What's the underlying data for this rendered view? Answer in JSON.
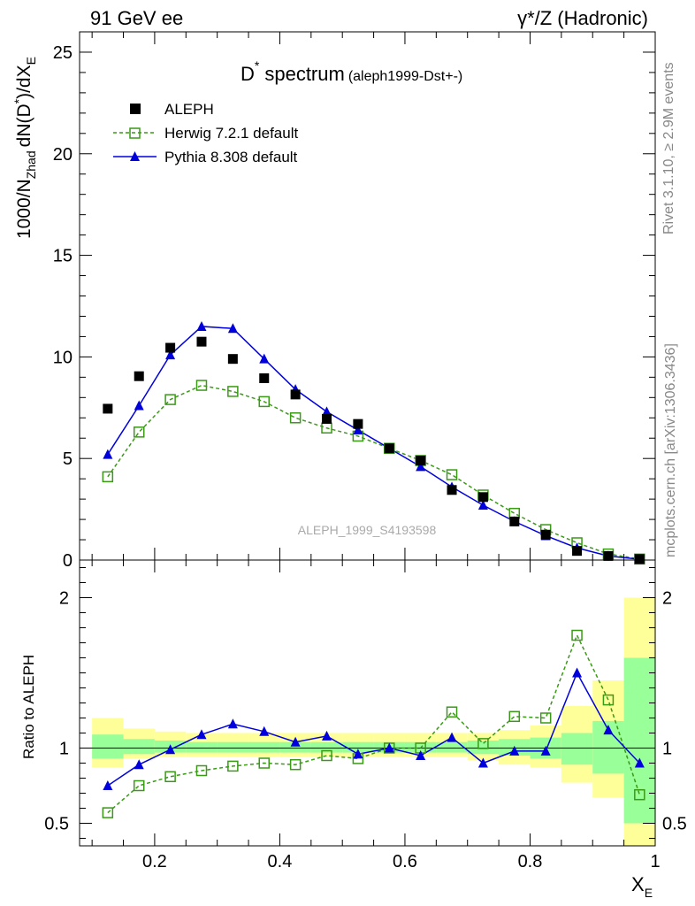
{
  "header": {
    "left": "91 GeV ee",
    "right": "γ*/Z (Hadronic)"
  },
  "side_labels": {
    "rivet": "Rivet 3.1.10, ≥ 2.9M events",
    "mcplots": "mcplots.cern.ch [arXiv:1306.3436]"
  },
  "title": {
    "main": "D",
    "sup": "*",
    "rest": "spectrum",
    "sub": "(aleph1999-Dst+-)"
  },
  "watermark": "ALEPH_1999_S4193598",
  "ylabel_top": {
    "a": "1000/N",
    "b": "Zhad",
    "c": "dN(D",
    "d": "*",
    "e": ")/dX",
    "f": "E"
  },
  "ylabel_bottom": "Ratio to ALEPH",
  "xlabel": {
    "main": "X",
    "sub": "E"
  },
  "legend": {
    "data": "ALEPH",
    "herwig": "Herwig 7.2.1 default",
    "pythia": "Pythia 8.308 default"
  },
  "colors": {
    "data": "#000000",
    "herwig": "#3a9a16",
    "pythia": "#0000dd",
    "band_outer": "#ffff99",
    "band_inner": "#99ff99"
  },
  "chart_data": [
    {
      "type": "scatter",
      "panel": "main",
      "xlabel": "X_E",
      "ylabel": "1000/N_Zhad dN(D*)/dX_E",
      "xlim": [
        0.08,
        1.0
      ],
      "ylim": [
        0,
        26
      ],
      "yticks": [
        0,
        5,
        10,
        15,
        20,
        25
      ],
      "xticks": [
        0.2,
        0.4,
        0.6,
        0.8,
        1.0
      ],
      "x": [
        0.125,
        0.175,
        0.225,
        0.275,
        0.325,
        0.375,
        0.425,
        0.475,
        0.525,
        0.575,
        0.625,
        0.675,
        0.725,
        0.775,
        0.825,
        0.875,
        0.925,
        0.975
      ],
      "series": [
        {
          "name": "ALEPH",
          "values": [
            7.45,
            9.05,
            10.45,
            10.75,
            9.9,
            8.95,
            8.15,
            6.95,
            6.7,
            5.5,
            4.9,
            3.45,
            3.1,
            1.9,
            1.25,
            0.45,
            0.2,
            0.05
          ]
        },
        {
          "name": "Herwig 7.2.1 default",
          "values": [
            4.1,
            6.3,
            7.9,
            8.6,
            8.3,
            7.8,
            7.0,
            6.5,
            6.1,
            5.5,
            4.9,
            4.2,
            3.2,
            2.3,
            1.5,
            0.85,
            0.3,
            0.05
          ]
        },
        {
          "name": "Pythia 8.308 default",
          "values": [
            5.2,
            7.6,
            10.1,
            11.5,
            11.4,
            9.9,
            8.4,
            7.3,
            6.4,
            5.5,
            4.6,
            3.6,
            2.7,
            1.9,
            1.2,
            0.6,
            0.2,
            0.04
          ]
        }
      ]
    },
    {
      "type": "line",
      "panel": "ratio",
      "xlabel": "X_E",
      "ylabel": "Ratio to ALEPH",
      "xlim": [
        0.08,
        1.0
      ],
      "ylim": [
        0.35,
        2.25
      ],
      "yticks": [
        0.5,
        1,
        2
      ],
      "xticks": [
        0.2,
        0.4,
        0.6,
        0.8,
        1.0
      ],
      "x": [
        0.125,
        0.175,
        0.225,
        0.275,
        0.325,
        0.375,
        0.425,
        0.475,
        0.525,
        0.575,
        0.625,
        0.675,
        0.725,
        0.775,
        0.825,
        0.875,
        0.925,
        0.975
      ],
      "series": [
        {
          "name": "Herwig 7.2.1 default",
          "values": [
            0.57,
            0.75,
            0.81,
            0.85,
            0.88,
            0.9,
            0.89,
            0.95,
            0.93,
            1.0,
            1.0,
            1.24,
            1.03,
            1.21,
            1.2,
            1.75,
            1.32,
            0.69
          ]
        },
        {
          "name": "Pythia 8.308 default",
          "values": [
            0.75,
            0.89,
            0.99,
            1.09,
            1.16,
            1.11,
            1.04,
            1.08,
            0.96,
            1.0,
            0.95,
            1.07,
            0.9,
            0.98,
            0.98,
            1.5,
            1.12,
            0.9
          ]
        }
      ],
      "bands": [
        {
          "x0": 0.1,
          "x1": 0.15,
          "outer": [
            0.87,
            1.2
          ],
          "inner": [
            0.93,
            1.09
          ]
        },
        {
          "x0": 0.15,
          "x1": 0.2,
          "outer": [
            0.93,
            1.13
          ],
          "inner": [
            0.96,
            1.06
          ]
        },
        {
          "x0": 0.2,
          "x1": 0.25,
          "outer": [
            0.94,
            1.11
          ],
          "inner": [
            0.97,
            1.05
          ]
        },
        {
          "x0": 0.25,
          "x1": 0.3,
          "outer": [
            0.94,
            1.1
          ],
          "inner": [
            0.97,
            1.04
          ]
        },
        {
          "x0": 0.3,
          "x1": 0.35,
          "outer": [
            0.94,
            1.1
          ],
          "inner": [
            0.97,
            1.04
          ]
        },
        {
          "x0": 0.35,
          "x1": 0.4,
          "outer": [
            0.94,
            1.1
          ],
          "inner": [
            0.97,
            1.04
          ]
        },
        {
          "x0": 0.4,
          "x1": 0.45,
          "outer": [
            0.94,
            1.1
          ],
          "inner": [
            0.97,
            1.04
          ]
        },
        {
          "x0": 0.45,
          "x1": 0.5,
          "outer": [
            0.94,
            1.1
          ],
          "inner": [
            0.97,
            1.04
          ]
        },
        {
          "x0": 0.5,
          "x1": 0.55,
          "outer": [
            0.94,
            1.1
          ],
          "inner": [
            0.97,
            1.04
          ]
        },
        {
          "x0": 0.55,
          "x1": 0.6,
          "outer": [
            0.94,
            1.1
          ],
          "inner": [
            0.97,
            1.04
          ]
        },
        {
          "x0": 0.6,
          "x1": 0.65,
          "outer": [
            0.94,
            1.1
          ],
          "inner": [
            0.97,
            1.04
          ]
        },
        {
          "x0": 0.65,
          "x1": 0.7,
          "outer": [
            0.94,
            1.1
          ],
          "inner": [
            0.97,
            1.04
          ]
        },
        {
          "x0": 0.7,
          "x1": 0.75,
          "outer": [
            0.92,
            1.1
          ],
          "inner": [
            0.96,
            1.05
          ]
        },
        {
          "x0": 0.75,
          "x1": 0.8,
          "outer": [
            0.89,
            1.12
          ],
          "inner": [
            0.95,
            1.06
          ]
        },
        {
          "x0": 0.8,
          "x1": 0.85,
          "outer": [
            0.87,
            1.15
          ],
          "inner": [
            0.93,
            1.07
          ]
        },
        {
          "x0": 0.85,
          "x1": 0.9,
          "outer": [
            0.77,
            1.28
          ],
          "inner": [
            0.89,
            1.1
          ]
        },
        {
          "x0": 0.9,
          "x1": 0.95,
          "outer": [
            0.67,
            1.45
          ],
          "inner": [
            0.83,
            1.18
          ]
        },
        {
          "x0": 0.95,
          "x1": 1.0,
          "outer": [
            0.35,
            2.0
          ],
          "inner": [
            0.5,
            1.6
          ]
        }
      ]
    }
  ]
}
